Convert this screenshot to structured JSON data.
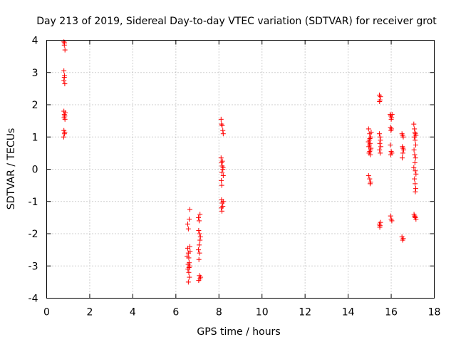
{
  "chart_data": {
    "type": "scatter",
    "title": "Day 213 of 2019, Sidereal Day-to-day VTEC variation (SDTVAR) for receiver grot",
    "xlabel": "GPS time / hours",
    "ylabel": "SDTVAR / TECUs",
    "xlim": [
      0,
      18
    ],
    "ylim": [
      -4,
      4
    ],
    "x_ticks": [
      0,
      2,
      4,
      6,
      8,
      10,
      12,
      14,
      16,
      18
    ],
    "y_ticks": [
      -4,
      -3,
      -2,
      -1,
      0,
      1,
      2,
      3,
      4
    ],
    "x_tick_labels": [
      "0",
      "2",
      "4",
      "6",
      "8",
      "10",
      "12",
      "14",
      "16",
      "18"
    ],
    "y_tick_labels": [
      "-4",
      "-3",
      "-2",
      "-1",
      "0",
      "1",
      "2",
      "3",
      "4"
    ],
    "grid": true,
    "marker": "+",
    "marker_color": "#ff0000",
    "series": [
      {
        "name": "SDTVAR",
        "points": [
          [
            0.8,
            3.95
          ],
          [
            0.82,
            3.85
          ],
          [
            0.85,
            3.7
          ],
          [
            0.83,
            3.92
          ],
          [
            0.8,
            3.05
          ],
          [
            0.83,
            2.9
          ],
          [
            0.8,
            2.75
          ],
          [
            0.84,
            2.65
          ],
          [
            0.82,
            2.85
          ],
          [
            0.8,
            1.8
          ],
          [
            0.82,
            1.7
          ],
          [
            0.84,
            1.65
          ],
          [
            0.86,
            1.75
          ],
          [
            0.81,
            1.6
          ],
          [
            0.85,
            1.55
          ],
          [
            0.8,
            1.2
          ],
          [
            0.83,
            1.1
          ],
          [
            0.79,
            1.0
          ],
          [
            0.84,
            1.15
          ],
          [
            6.55,
            -1.7
          ],
          [
            6.58,
            -1.85
          ],
          [
            6.62,
            -1.55
          ],
          [
            6.65,
            -1.25
          ],
          [
            6.55,
            -2.45
          ],
          [
            6.58,
            -2.6
          ],
          [
            6.6,
            -2.75
          ],
          [
            6.62,
            -2.9
          ],
          [
            6.64,
            -3.0
          ],
          [
            6.56,
            -3.1
          ],
          [
            6.6,
            -3.2
          ],
          [
            6.63,
            -3.35
          ],
          [
            6.58,
            -3.5
          ],
          [
            6.66,
            -2.55
          ],
          [
            6.52,
            -2.7
          ],
          [
            6.57,
            -2.95
          ],
          [
            6.61,
            -3.05
          ],
          [
            6.65,
            -2.4
          ],
          [
            7.05,
            -1.5
          ],
          [
            7.08,
            -1.6
          ],
          [
            7.12,
            -1.4
          ],
          [
            7.06,
            -1.9
          ],
          [
            7.1,
            -2.0
          ],
          [
            7.12,
            -2.2
          ],
          [
            7.08,
            -2.35
          ],
          [
            7.05,
            -2.5
          ],
          [
            7.1,
            -2.6
          ],
          [
            7.14,
            -2.1
          ],
          [
            7.07,
            -2.8
          ],
          [
            7.09,
            -3.3
          ],
          [
            7.12,
            -3.4
          ],
          [
            7.06,
            -3.45
          ],
          [
            7.15,
            -3.35
          ],
          [
            8.1,
            1.55
          ],
          [
            8.12,
            1.4
          ],
          [
            8.15,
            1.35
          ],
          [
            8.18,
            1.2
          ],
          [
            8.2,
            1.1
          ],
          [
            8.1,
            0.35
          ],
          [
            8.12,
            0.2
          ],
          [
            8.15,
            0.1
          ],
          [
            8.18,
            0.0
          ],
          [
            8.14,
            -0.1
          ],
          [
            8.2,
            -0.2
          ],
          [
            8.11,
            -0.35
          ],
          [
            8.13,
            -0.5
          ],
          [
            8.16,
            0.25
          ],
          [
            8.19,
            0.05
          ],
          [
            8.12,
            -0.95
          ],
          [
            8.15,
            -1.05
          ],
          [
            8.18,
            -1.15
          ],
          [
            8.14,
            -1.3
          ],
          [
            8.2,
            -1.0
          ],
          [
            8.11,
            -1.2
          ],
          [
            14.95,
            1.25
          ],
          [
            15.0,
            1.1
          ],
          [
            15.05,
            1.0
          ],
          [
            14.98,
            0.9
          ],
          [
            15.02,
            0.8
          ],
          [
            14.96,
            0.7
          ],
          [
            15.04,
            0.6
          ],
          [
            15.0,
            0.55
          ],
          [
            14.97,
            0.5
          ],
          [
            15.06,
            0.65
          ],
          [
            14.99,
            0.75
          ],
          [
            15.03,
            0.45
          ],
          [
            14.94,
            0.85
          ],
          [
            15.01,
            0.95
          ],
          [
            15.07,
            1.15
          ],
          [
            14.95,
            -0.2
          ],
          [
            15.0,
            -0.3
          ],
          [
            15.04,
            -0.4
          ],
          [
            15.02,
            -0.45
          ],
          [
            15.45,
            2.3
          ],
          [
            15.48,
            2.15
          ],
          [
            15.5,
            2.25
          ],
          [
            15.46,
            2.1
          ],
          [
            15.45,
            1.1
          ],
          [
            15.48,
            1.0
          ],
          [
            15.5,
            0.9
          ],
          [
            15.47,
            0.8
          ],
          [
            15.52,
            0.7
          ],
          [
            15.46,
            0.6
          ],
          [
            15.49,
            0.5
          ],
          [
            15.45,
            -1.7
          ],
          [
            15.48,
            -1.75
          ],
          [
            15.5,
            -1.65
          ],
          [
            15.47,
            -1.8
          ],
          [
            15.95,
            1.7
          ],
          [
            15.98,
            1.65
          ],
          [
            16.02,
            1.6
          ],
          [
            16.0,
            1.55
          ],
          [
            16.04,
            1.7
          ],
          [
            15.97,
            1.3
          ],
          [
            16.01,
            1.25
          ],
          [
            15.99,
            1.2
          ],
          [
            15.96,
            0.75
          ],
          [
            16.0,
            0.55
          ],
          [
            16.03,
            0.5
          ],
          [
            15.98,
            0.45
          ],
          [
            15.97,
            -1.45
          ],
          [
            16.0,
            -1.55
          ],
          [
            16.03,
            -1.6
          ],
          [
            16.5,
            1.1
          ],
          [
            16.53,
            1.05
          ],
          [
            16.56,
            1.0
          ],
          [
            16.52,
            0.7
          ],
          [
            16.55,
            0.65
          ],
          [
            16.58,
            0.6
          ],
          [
            16.54,
            0.5
          ],
          [
            16.51,
            0.35
          ],
          [
            16.5,
            -2.1
          ],
          [
            16.53,
            -2.2
          ],
          [
            16.56,
            -2.15
          ],
          [
            17.05,
            1.4
          ],
          [
            17.08,
            1.25
          ],
          [
            17.1,
            1.15
          ],
          [
            17.12,
            1.1
          ],
          [
            17.15,
            1.05
          ],
          [
            17.07,
            1.0
          ],
          [
            17.11,
            0.9
          ],
          [
            17.14,
            0.75
          ],
          [
            17.06,
            0.6
          ],
          [
            17.09,
            0.45
          ],
          [
            17.13,
            0.35
          ],
          [
            17.1,
            0.2
          ],
          [
            17.05,
            0.05
          ],
          [
            17.12,
            -0.05
          ],
          [
            17.15,
            -0.15
          ],
          [
            17.08,
            -0.3
          ],
          [
            17.11,
            -0.45
          ],
          [
            17.14,
            -0.6
          ],
          [
            17.12,
            -0.7
          ],
          [
            17.06,
            -1.4
          ],
          [
            17.09,
            -1.45
          ],
          [
            17.12,
            -1.5
          ],
          [
            17.15,
            -1.55
          ],
          [
            17.1,
            -1.48
          ]
        ]
      }
    ]
  }
}
